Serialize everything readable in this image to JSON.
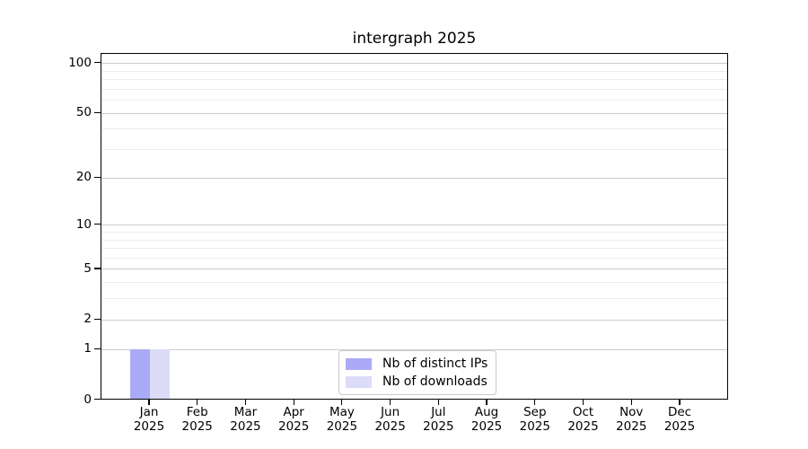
{
  "chart_data": {
    "type": "bar",
    "title": "intergraph 2025",
    "scale": "log1p",
    "categories": [
      {
        "month": "Jan",
        "year": "2025"
      },
      {
        "month": "Feb",
        "year": "2025"
      },
      {
        "month": "Mar",
        "year": "2025"
      },
      {
        "month": "Apr",
        "year": "2025"
      },
      {
        "month": "May",
        "year": "2025"
      },
      {
        "month": "Jun",
        "year": "2025"
      },
      {
        "month": "Jul",
        "year": "2025"
      },
      {
        "month": "Aug",
        "year": "2025"
      },
      {
        "month": "Sep",
        "year": "2025"
      },
      {
        "month": "Oct",
        "year": "2025"
      },
      {
        "month": "Nov",
        "year": "2025"
      },
      {
        "month": "Dec",
        "year": "2025"
      }
    ],
    "series": [
      {
        "name": "Nb of distinct IPs",
        "color": "#aaaaf6",
        "values": [
          1,
          0,
          0,
          0,
          0,
          0,
          0,
          0,
          0,
          0,
          0,
          0
        ]
      },
      {
        "name": "Nb of downloads",
        "color": "#dcdcf8",
        "values": [
          1,
          0,
          0,
          0,
          0,
          0,
          0,
          0,
          0,
          0,
          0,
          0
        ]
      }
    ],
    "y_axis": {
      "major_ticks": [
        0,
        1,
        2,
        5,
        10,
        20,
        50,
        100
      ],
      "minor_gridlines": [
        3,
        4,
        6,
        7,
        8,
        9,
        30,
        40,
        60,
        70,
        80,
        90
      ]
    },
    "colors": {
      "grid_major": "#cccccc",
      "grid_minor": "#ececec",
      "axis": "#000000",
      "legend_border": "#c9c9c9",
      "background": "#ffffff"
    },
    "legend_position": "bottom-center"
  }
}
